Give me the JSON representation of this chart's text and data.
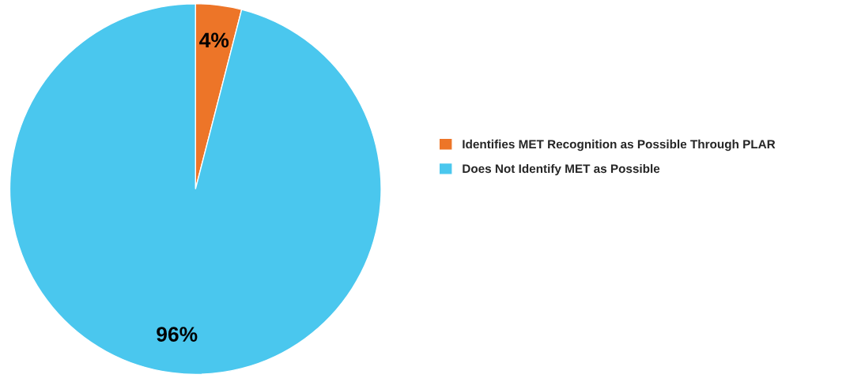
{
  "chart_data": {
    "type": "pie",
    "categories": [
      "Identifies MET Recognition as Possible Through PLAR",
      "Does Not Identify MET as Possible"
    ],
    "values": [
      4,
      96
    ],
    "colors": [
      "#ed7528",
      "#4ac7ee"
    ],
    "value_labels": [
      "4%",
      "96%"
    ],
    "legend": "right"
  }
}
